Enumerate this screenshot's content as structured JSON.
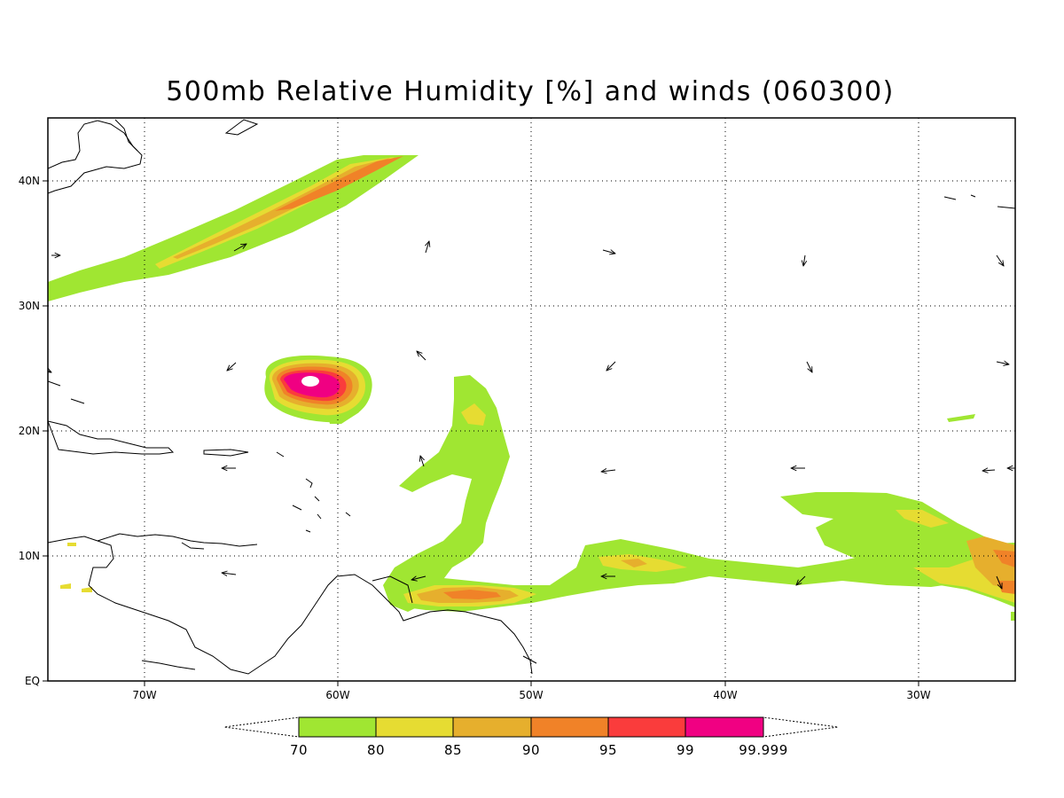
{
  "title": "500mb Relative Humidity [%] and winds (060300)",
  "map": {
    "lon_range": [
      -75,
      -25
    ],
    "lat_range": [
      0,
      45
    ],
    "lon_ticks": [
      {
        "value": -70,
        "label": "70W"
      },
      {
        "value": -60,
        "label": "60W"
      },
      {
        "value": -50,
        "label": "50W"
      },
      {
        "value": -40,
        "label": "40W"
      },
      {
        "value": -30,
        "label": "30W"
      }
    ],
    "lat_ticks": [
      {
        "value": 0,
        "label": "EQ"
      },
      {
        "value": 10,
        "label": "10N"
      },
      {
        "value": 20,
        "label": "20N"
      },
      {
        "value": 30,
        "label": "30N"
      },
      {
        "value": 40,
        "label": "40N"
      }
    ],
    "grid": "dotted",
    "colors": {
      "c70": "#a0e632",
      "c80": "#e6dc32",
      "c85": "#e6af2d",
      "c90": "#f08228",
      "c95": "#fa3c3c",
      "c99": "#f00082",
      "coast": "#000000"
    }
  },
  "colorbar": {
    "levels": [
      "70",
      "80",
      "85",
      "90",
      "95",
      "99",
      "99.999"
    ],
    "colors": [
      "#a0e632",
      "#e6dc32",
      "#e6af2d",
      "#f08228",
      "#fa3c3c",
      "#f00082"
    ]
  }
}
